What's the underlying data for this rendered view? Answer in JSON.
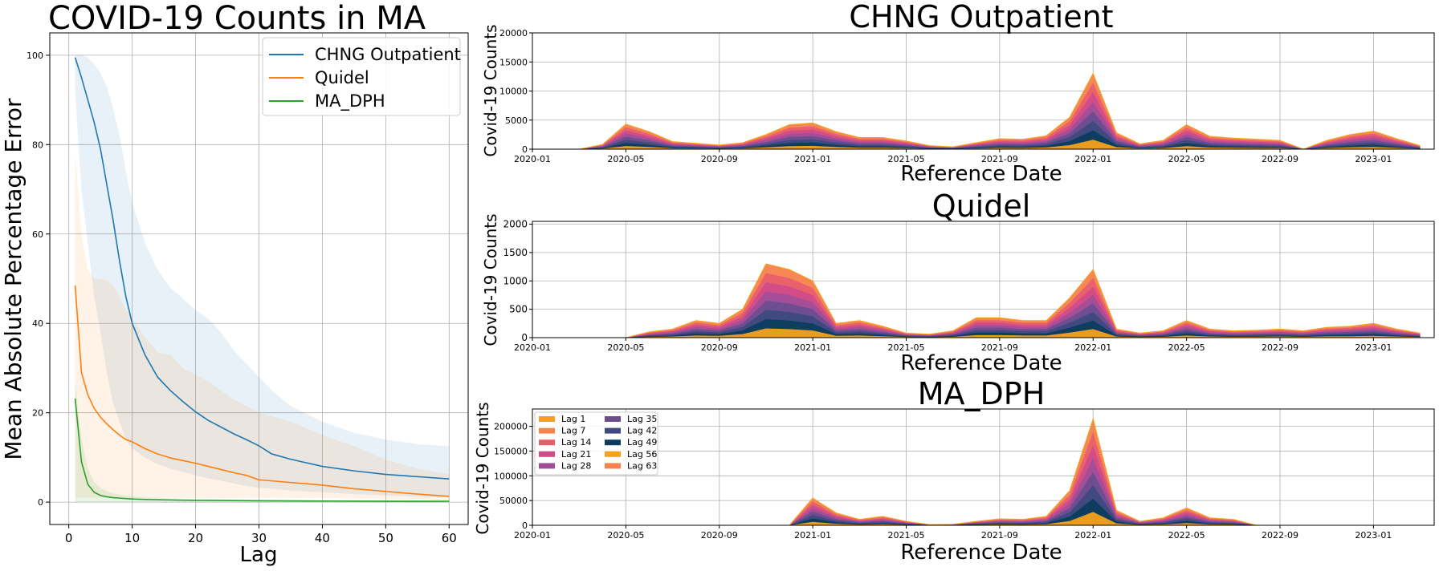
{
  "chart_data": [
    {
      "type": "line",
      "title": "COVID-19 Counts in MA",
      "xlabel": "Lag",
      "ylabel": "Mean Absolute Percentage Error",
      "xlim": [
        -3,
        63
      ],
      "ylim": [
        -5,
        105
      ],
      "xticks": [
        0,
        10,
        20,
        30,
        40,
        50,
        60
      ],
      "yticks": [
        0,
        20,
        40,
        60,
        80,
        100
      ],
      "grid": true,
      "legend_position": "top-right",
      "series": [
        {
          "name": "CHNG Outpatient",
          "color": "#1f77b4",
          "x": [
            1,
            2,
            3,
            4,
            5,
            6,
            7,
            8,
            9,
            10,
            12,
            14,
            16,
            18,
            20,
            22,
            24,
            26,
            28,
            30,
            32,
            35,
            40,
            45,
            50,
            55,
            60
          ],
          "y": [
            99.5,
            95,
            90,
            85,
            79,
            71,
            63,
            54,
            46,
            40,
            33,
            28,
            25,
            22.5,
            20.2,
            18.3,
            16.8,
            15.3,
            14,
            12.6,
            10.8,
            9.6,
            8,
            7,
            6.2,
            5.7,
            5.2
          ],
          "band_low": [
            92,
            70,
            58,
            46,
            38,
            29,
            22,
            18,
            14,
            12,
            10,
            8.5,
            7.5,
            6.8,
            6,
            5.3,
            4.8,
            4.2,
            3.6,
            3.2,
            3,
            2.6,
            2.2,
            1.8,
            1.5,
            1.2,
            1
          ],
          "band_high": [
            100,
            100,
            99.5,
            98,
            96,
            93,
            88,
            82,
            74,
            67,
            58,
            52,
            48,
            45.5,
            43,
            41,
            38,
            34,
            31,
            28,
            25,
            21.5,
            18,
            15.5,
            14,
            13,
            12.5
          ]
        },
        {
          "name": "Quidel",
          "color": "#ff7f0e",
          "x": [
            1,
            2,
            3,
            4,
            5,
            6,
            7,
            8,
            9,
            10,
            12,
            14,
            16,
            18,
            20,
            22,
            24,
            26,
            28,
            30,
            35,
            40,
            45,
            50,
            55,
            60
          ],
          "y": [
            48.5,
            29,
            24,
            21,
            19,
            17.5,
            16.2,
            15,
            14,
            13.5,
            12,
            10.8,
            9.9,
            9.3,
            8.7,
            8,
            7.3,
            6.6,
            6,
            5,
            4.4,
            3.8,
            3,
            2.4,
            1.8,
            1.3
          ],
          "band_low": [
            1,
            1,
            1,
            1,
            1,
            1,
            1,
            1,
            1,
            1,
            1,
            1,
            1,
            1,
            1,
            1,
            1,
            1,
            1,
            1,
            1,
            0.9,
            0.8,
            0.7,
            0.6,
            0.5
          ],
          "band_high": [
            78,
            60,
            52,
            50,
            50,
            49.5,
            48.5,
            46,
            43,
            41,
            37,
            33.5,
            33,
            30,
            28.5,
            27,
            25,
            23,
            21.5,
            20,
            18,
            15,
            12.5,
            9.5,
            7.5,
            6.2
          ]
        },
        {
          "name": "MA_DPH",
          "color": "#2ca02c",
          "x": [
            1,
            2,
            3,
            4,
            5,
            6,
            7,
            8,
            9,
            10,
            12,
            15,
            20,
            30,
            40,
            50,
            60
          ],
          "y": [
            23.2,
            9,
            4,
            2.2,
            1.5,
            1.2,
            1,
            0.9,
            0.8,
            0.7,
            0.6,
            0.5,
            0.4,
            0.3,
            0.25,
            0.2,
            0.2
          ],
          "band_low": [
            0,
            0,
            0,
            0,
            0,
            0,
            0,
            0,
            0,
            0,
            0,
            0,
            0,
            0,
            0,
            0,
            0
          ],
          "band_high": [
            27,
            14,
            7.5,
            4.5,
            3.2,
            2.5,
            2,
            1.7,
            1.5,
            1.3,
            1.1,
            0.9,
            0.7,
            0.5,
            0.4,
            0.35,
            0.3
          ]
        }
      ]
    },
    {
      "type": "area",
      "title": "CHNG Outpatient",
      "xlabel": "Reference Date",
      "ylabel": "Covid-19 Counts",
      "ylim": [
        0,
        20000
      ],
      "yticks": [
        0,
        5000,
        10000,
        15000,
        20000
      ],
      "xticks": [
        "2020-01",
        "2020-05",
        "2020-09",
        "2021-01",
        "2021-05",
        "2021-09",
        "2022-01",
        "2022-05",
        "2022-09",
        "2023-01"
      ],
      "grid": true,
      "x": [
        "2020-01",
        "2020-02",
        "2020-03",
        "2020-04",
        "2020-05",
        "2020-06",
        "2020-07",
        "2020-08",
        "2020-09",
        "2020-10",
        "2020-11",
        "2020-12",
        "2021-01",
        "2021-02",
        "2021-03",
        "2021-04",
        "2021-05",
        "2021-06",
        "2021-07",
        "2021-08",
        "2021-09",
        "2021-10",
        "2021-11",
        "2021-12",
        "2022-01",
        "2022-02",
        "2022-03",
        "2022-04",
        "2022-05",
        "2022-06",
        "2022-07",
        "2022-08",
        "2022-09",
        "2022-10",
        "2022-11",
        "2022-12",
        "2023-01",
        "2023-02",
        "2023-03"
      ],
      "total": [
        0,
        0,
        0,
        800,
        4300,
        3000,
        1300,
        1000,
        700,
        1100,
        2500,
        4200,
        4500,
        3000,
        2000,
        2000,
        1400,
        600,
        400,
        1100,
        1800,
        1700,
        2300,
        5500,
        13000,
        2800,
        900,
        1500,
        4200,
        2200,
        1900,
        1700,
        1500,
        0,
        1500,
        2500,
        3100,
        1800,
        600
      ]
    },
    {
      "type": "area",
      "title": "Quidel",
      "xlabel": "Reference Date",
      "ylabel": "Covid-19 Counts",
      "ylim": [
        0,
        2050
      ],
      "yticks": [
        0,
        500,
        1000,
        1500,
        2000
      ],
      "xticks": [
        "2020-01",
        "2020-05",
        "2020-09",
        "2021-01",
        "2021-05",
        "2021-09",
        "2022-01",
        "2022-05",
        "2022-09",
        "2023-01"
      ],
      "grid": true,
      "x": [
        "2020-01",
        "2020-02",
        "2020-03",
        "2020-04",
        "2020-05",
        "2020-06",
        "2020-07",
        "2020-08",
        "2020-09",
        "2020-10",
        "2020-11",
        "2020-12",
        "2021-01",
        "2021-02",
        "2021-03",
        "2021-04",
        "2021-05",
        "2021-06",
        "2021-07",
        "2021-08",
        "2021-09",
        "2021-10",
        "2021-11",
        "2021-12",
        "2022-01",
        "2022-02",
        "2022-03",
        "2022-04",
        "2022-05",
        "2022-06",
        "2022-07",
        "2022-08",
        "2022-09",
        "2022-10",
        "2022-11",
        "2022-12",
        "2023-01",
        "2023-02",
        "2023-03"
      ],
      "total": [
        0,
        0,
        0,
        0,
        0,
        100,
        150,
        300,
        250,
        500,
        1300,
        1200,
        1000,
        250,
        300,
        200,
        80,
        60,
        120,
        350,
        350,
        300,
        300,
        700,
        1200,
        150,
        80,
        120,
        300,
        150,
        120,
        130,
        150,
        120,
        180,
        200,
        250,
        150,
        80
      ]
    },
    {
      "type": "area",
      "title": "MA_DPH",
      "xlabel": "Reference Date",
      "ylabel": "Covid-19 Counts",
      "ylim": [
        0,
        235000
      ],
      "yticks": [
        0,
        50000,
        100000,
        150000,
        200000
      ],
      "xticks": [
        "2020-01",
        "2020-05",
        "2020-09",
        "2021-01",
        "2021-05",
        "2021-09",
        "2022-01",
        "2022-05",
        "2022-09",
        "2023-01"
      ],
      "grid": true,
      "legend_position": "top-left",
      "legend": [
        {
          "label": "Lag 1",
          "color": "#f7a11a"
        },
        {
          "label": "Lag 7",
          "color": "#f6824c"
        },
        {
          "label": "Lag 14",
          "color": "#e85f6b"
        },
        {
          "label": "Lag 21",
          "color": "#d14b8a"
        },
        {
          "label": "Lag 28",
          "color": "#a04e98"
        },
        {
          "label": "Lag 35",
          "color": "#6c4d8f"
        },
        {
          "label": "Lag 42",
          "color": "#3e4a80"
        },
        {
          "label": "Lag 49",
          "color": "#0b3c5d"
        },
        {
          "label": "Lag 56",
          "color": "#f7a11a"
        },
        {
          "label": "Lag 63",
          "color": "#f6824c"
        }
      ],
      "x": [
        "2020-01",
        "2020-02",
        "2020-03",
        "2020-04",
        "2020-05",
        "2020-06",
        "2020-07",
        "2020-08",
        "2020-09",
        "2020-10",
        "2020-11",
        "2020-12",
        "2021-01",
        "2021-02",
        "2021-03",
        "2021-04",
        "2021-05",
        "2021-06",
        "2021-07",
        "2021-08",
        "2021-09",
        "2021-10",
        "2021-11",
        "2021-12",
        "2022-01",
        "2022-02",
        "2022-03",
        "2022-04",
        "2022-05",
        "2022-06",
        "2022-07",
        "2022-08",
        "2022-09",
        "2022-10",
        "2022-11",
        "2022-12",
        "2023-01",
        "2023-02",
        "2023-03"
      ],
      "total": [
        0,
        0,
        0,
        0,
        0,
        0,
        0,
        0,
        0,
        0,
        0,
        0,
        55000,
        25000,
        12000,
        18000,
        8000,
        1500,
        2000,
        8000,
        13000,
        12000,
        18000,
        70000,
        215000,
        30000,
        8000,
        15000,
        35000,
        15000,
        12000,
        0,
        0,
        0,
        0,
        0,
        0,
        0,
        0
      ]
    }
  ]
}
